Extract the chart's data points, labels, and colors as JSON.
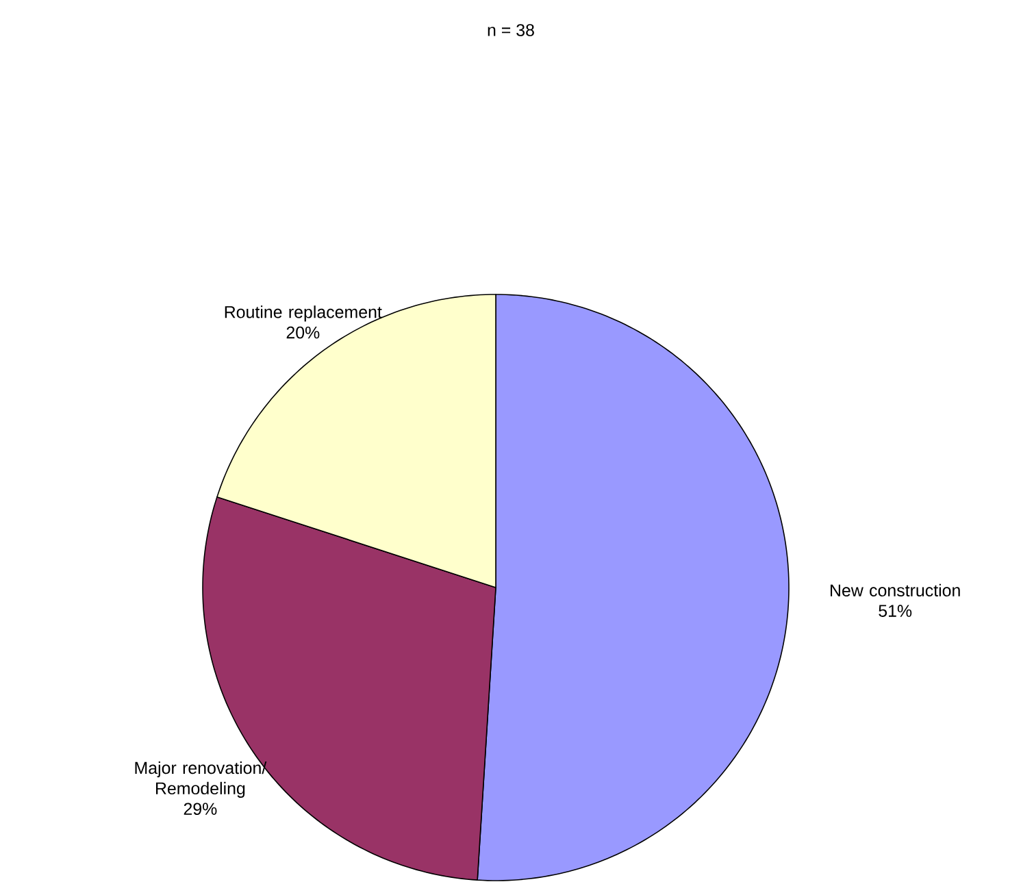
{
  "chart_data": {
    "type": "pie",
    "title": "n = 38",
    "categories": [
      "New construction",
      "Major renovation/ Remodeling",
      "Routine replacement"
    ],
    "values": [
      51,
      29,
      20
    ],
    "colors": [
      "#9999ff",
      "#993366",
      "#ffffcc"
    ],
    "value_labels": [
      "51%",
      "29%",
      "20%"
    ]
  }
}
